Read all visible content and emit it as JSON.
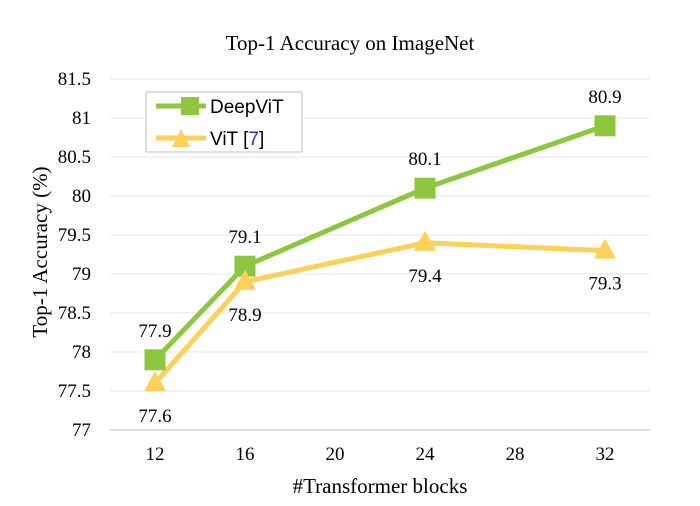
{
  "chart_data": {
    "type": "line",
    "title": "Top-1 Accuracy on ImageNet",
    "xlabel": "#Transformer blocks",
    "ylabel": "Top-1 Accuracy (%)",
    "x": [
      12,
      16,
      20,
      24,
      28,
      32
    ],
    "x_tick_labels": [
      "12",
      "16",
      "20",
      "24",
      "28",
      "32"
    ],
    "ylim": [
      77,
      81.5
    ],
    "y_tick_labels": [
      "77",
      "77.5",
      "78",
      "78.5",
      "79",
      "79.5",
      "80",
      "80.5",
      "81",
      "81.5"
    ],
    "grid": "horizontal",
    "legend_position": "top-left",
    "series": [
      {
        "name": "DeepViT",
        "marker": "square",
        "color": "#8ec63f",
        "points": [
          {
            "x": 12,
            "y": 77.9
          },
          {
            "x": 16,
            "y": 79.1
          },
          {
            "x": 24,
            "y": 80.1
          },
          {
            "x": 32,
            "y": 80.9
          }
        ],
        "labels": [
          "77.9",
          "79.1",
          "80.1",
          "80.9"
        ],
        "label_side": "above"
      },
      {
        "name": "ViT",
        "name_ref": "7",
        "marker": "triangle",
        "color": "#fbd157",
        "points": [
          {
            "x": 12,
            "y": 77.6
          },
          {
            "x": 16,
            "y": 78.9
          },
          {
            "x": 24,
            "y": 79.4
          },
          {
            "x": 32,
            "y": 79.3
          }
        ],
        "labels": [
          "77.6",
          "78.9",
          "79.4",
          "79.3"
        ],
        "label_side": "below"
      }
    ]
  }
}
